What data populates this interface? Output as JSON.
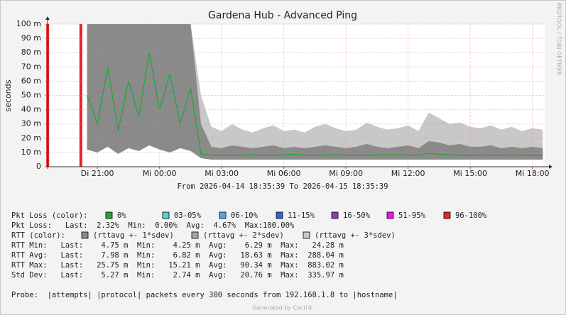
{
  "chart_data": {
    "type": "line",
    "title": "Gardena Hub - Advanced Ping",
    "y_label": "seconds",
    "side_text": "RRDTOOL / TOBI OETIKER",
    "xlim": [
      "2026-04-14 18:35:39",
      "2026-04-15 18:35:39"
    ],
    "xticks": [
      {
        "value": "2026-04-14 21:00",
        "label": "Di 21:00"
      },
      {
        "value": "2026-04-15 00:00",
        "label": "Mi 00:00"
      },
      {
        "value": "2026-04-15 03:00",
        "label": "Mi 03:00"
      },
      {
        "value": "2026-04-15 06:00",
        "label": "Mi 06:00"
      },
      {
        "value": "2026-04-15 09:00",
        "label": "Mi 09:00"
      },
      {
        "value": "2026-04-15 12:00",
        "label": "Mi 12:00"
      },
      {
        "value": "2026-04-15 15:00",
        "label": "Mi 15:00"
      },
      {
        "value": "2026-04-15 18:00",
        "label": "Mi 18:00"
      }
    ],
    "ylim": [
      0,
      0.1
    ],
    "yticks": [
      0,
      {
        "value": 0.01,
        "label": "10 m"
      },
      {
        "value": 0.02,
        "label": "20 m"
      },
      {
        "value": 0.03,
        "label": "30 m"
      },
      {
        "value": 0.04,
        "label": "40 m"
      },
      {
        "value": 0.05,
        "label": "50 m"
      },
      {
        "value": 0.06,
        "label": "60 m"
      },
      {
        "value": 0.07,
        "label": "70 m"
      },
      {
        "value": 0.08,
        "label": "80 m"
      },
      {
        "value": 0.09,
        "label": "90 m"
      },
      {
        "value": 0.1,
        "label": "100 m"
      }
    ],
    "y2lim": [
      0,
      100
    ],
    "grid": true,
    "x": [
      "2026-04-14 19:00",
      "2026-04-14 19:30",
      "2026-04-14 20:00",
      "2026-04-14 20:30",
      "2026-04-14 21:00",
      "2026-04-14 21:30",
      "2026-04-14 22:00",
      "2026-04-14 22:30",
      "2026-04-14 23:00",
      "2026-04-14 23:30",
      "2026-04-15 00:00",
      "2026-04-15 00:30",
      "2026-04-15 01:00",
      "2026-04-15 01:30",
      "2026-04-15 02:00",
      "2026-04-15 02:30",
      "2026-04-15 03:00",
      "2026-04-15 03:30",
      "2026-04-15 04:00",
      "2026-04-15 04:30",
      "2026-04-15 05:00",
      "2026-04-15 05:30",
      "2026-04-15 06:00",
      "2026-04-15 06:30",
      "2026-04-15 07:00",
      "2026-04-15 07:30",
      "2026-04-15 08:00",
      "2026-04-15 08:30",
      "2026-04-15 09:00",
      "2026-04-15 09:30",
      "2026-04-15 10:00",
      "2026-04-15 10:30",
      "2026-04-15 11:00",
      "2026-04-15 11:30",
      "2026-04-15 12:00",
      "2026-04-15 12:30",
      "2026-04-15 13:00",
      "2026-04-15 13:30",
      "2026-04-15 14:00",
      "2026-04-15 14:30",
      "2026-04-15 15:00",
      "2026-04-15 15:30",
      "2026-04-15 16:00",
      "2026-04-15 16:30",
      "2026-04-15 17:00",
      "2026-04-15 17:30",
      "2026-04-15 18:00",
      "2026-04-15 18:30"
    ],
    "series": [
      {
        "kind": "area",
        "color": "#c8c8c8",
        "values": [
          null,
          null,
          null,
          0.1,
          0.1,
          0.1,
          0.1,
          0.1,
          0.1,
          0.1,
          0.1,
          0.1,
          0.1,
          0.1,
          0.05,
          0.028,
          0.025,
          0.03,
          0.026,
          0.024,
          0.027,
          0.029,
          0.025,
          0.026,
          0.024,
          0.028,
          0.03,
          0.027,
          0.025,
          0.026,
          0.031,
          0.028,
          0.026,
          0.027,
          0.029,
          0.025,
          0.038,
          0.034,
          0.03,
          0.031,
          0.028,
          0.027,
          0.029,
          0.026,
          0.028,
          0.025,
          0.027,
          0.026
        ]
      },
      {
        "kind": "area",
        "color": "#8a8a8a",
        "values": [
          null,
          null,
          null,
          0.1,
          0.1,
          0.1,
          0.1,
          0.1,
          0.1,
          0.1,
          0.1,
          0.1,
          0.1,
          0.1,
          0.03,
          0.014,
          0.013,
          0.015,
          0.014,
          0.013,
          0.014,
          0.015,
          0.013,
          0.014,
          0.013,
          0.014,
          0.015,
          0.014,
          0.013,
          0.014,
          0.016,
          0.014,
          0.013,
          0.014,
          0.015,
          0.013,
          0.018,
          0.017,
          0.015,
          0.016,
          0.014,
          0.014,
          0.015,
          0.013,
          0.014,
          0.013,
          0.014,
          0.013
        ]
      },
      {
        "kind": "area",
        "color": "#ffffff",
        "values": [
          null,
          null,
          null,
          0.012,
          0.01,
          0.014,
          0.009,
          0.013,
          0.011,
          0.015,
          0.012,
          0.01,
          0.013,
          0.011,
          0.006,
          0.005,
          0.005,
          0.005,
          0.005,
          0.005,
          0.005,
          0.005,
          0.005,
          0.005,
          0.005,
          0.005,
          0.005,
          0.005,
          0.005,
          0.005,
          0.005,
          0.005,
          0.005,
          0.005,
          0.005,
          0.005,
          0.005,
          0.005,
          0.005,
          0.005,
          0.005,
          0.005,
          0.005,
          0.005,
          0.005,
          0.005,
          0.005,
          0.005
        ]
      },
      {
        "kind": "line",
        "color": "#1fa83a",
        "values": [
          null,
          null,
          null,
          0.05,
          0.03,
          0.07,
          0.025,
          0.06,
          0.035,
          0.08,
          0.04,
          0.065,
          0.03,
          0.055,
          0.009,
          0.008,
          0.0082,
          0.0079,
          0.0081,
          0.0085,
          0.008,
          0.0078,
          0.0083,
          0.0087,
          0.008,
          0.0079,
          0.0082,
          0.0084,
          0.0081,
          0.0078,
          0.008,
          0.0083,
          0.0082,
          0.0086,
          0.0081,
          0.0079,
          0.0095,
          0.0088,
          0.0083,
          0.008,
          0.0078,
          0.0082,
          0.0081,
          0.0079,
          0.0083,
          0.008,
          0.0078,
          0.008
        ]
      },
      {
        "kind": "bar",
        "axis": "y2",
        "color": "#e8212b",
        "x": [
          "2026-04-14 18:36",
          "2026-04-14 20:12"
        ],
        "values": [
          100,
          100
        ]
      }
    ],
    "range_text": "From 2026-04-14 18:35:39 To 2026-04-15 18:35:39",
    "loss_legend": {
      "label": "Pkt Loss (color):",
      "items": [
        {
          "label": "0%",
          "color": "#1fa83a"
        },
        {
          "label": "03-05%",
          "color": "#4fd6c8"
        },
        {
          "label": "06-10%",
          "color": "#5aa6e0"
        },
        {
          "label": "11-15%",
          "color": "#3a5fd6"
        },
        {
          "label": "16-50%",
          "color": "#8a3fb0"
        },
        {
          "label": "51-95%",
          "color": "#ee12ee"
        },
        {
          "label": "96-100%",
          "color": "#e8212b"
        }
      ]
    },
    "loss_stats": "Pkt Loss:   Last:  2.32%  Min:  0.00%  Avg:  4.67%  Max:100.00%",
    "rtt_legend": {
      "label": "RTT (color):",
      "items": [
        {
          "label": "(rttavg +- 1*sdev)",
          "color": "#8a8a8a"
        },
        {
          "label": "(rttavg +- 2*sdev)",
          "color": "#a8a8a8"
        },
        {
          "label": "(rttavg +- 3*sdev)",
          "color": "#c8c8c8"
        }
      ]
    },
    "stats": [
      "RTT Min:   Last:    4.75 m  Min:    4.25 m  Avg:    6.29 m  Max:   24.28 m",
      "RTT Avg:   Last:    7.98 m  Min:    6.82 m  Avg:   18.63 m  Max:  288.04 m",
      "RTT Max:   Last:   25.75 m  Min:   15.21 m  Avg:   90.34 m  Max:  883.02 m",
      "Std Dev:   Last:    5.27 m  Min:    2.74 m  Avg:   20.76 m  Max:  335.97 m"
    ],
    "probe": "Probe:  |attempts| |protocol| packets every 300 seconds from 192.168.1.8 to |hostname|",
    "footer": "Generated by Cacti®"
  }
}
